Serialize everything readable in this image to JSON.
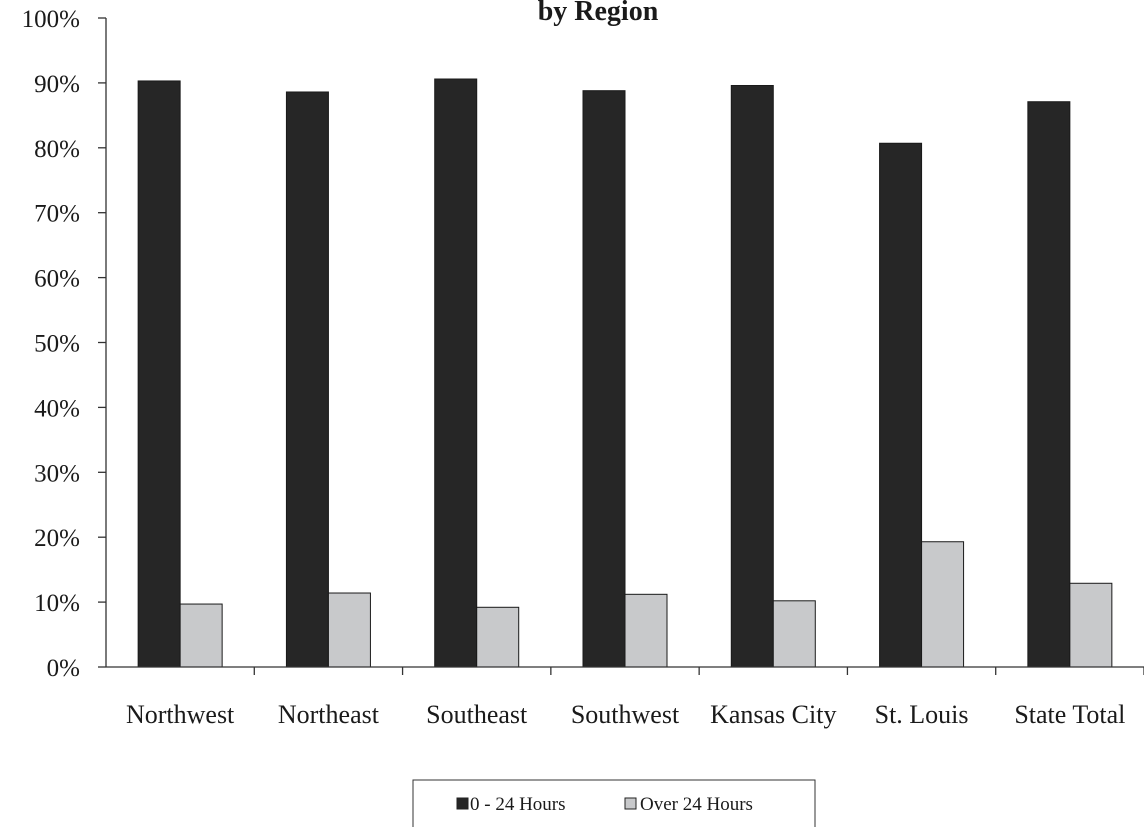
{
  "chart_data": {
    "type": "bar",
    "title": "by Region",
    "categories": [
      "Northwest",
      "Northeast",
      "Southeast",
      "Southwest",
      "Kansas City",
      "St. Louis",
      "State Total"
    ],
    "series": [
      {
        "name": "0 - 24 Hours",
        "values": [
          90.3,
          88.6,
          90.6,
          88.8,
          89.6,
          80.7,
          87.1
        ],
        "color": "#262626"
      },
      {
        "name": "Over 24 Hours",
        "values": [
          9.7,
          11.4,
          9.2,
          11.2,
          10.2,
          19.3,
          12.9
        ],
        "color": "#c8c9cb"
      }
    ],
    "ylim": [
      0,
      100
    ],
    "yticks": [
      "0%",
      "10%",
      "20%",
      "30%",
      "40%",
      "50%",
      "60%",
      "70%",
      "80%",
      "90%",
      "100%"
    ],
    "xlabel": "",
    "ylabel": "",
    "grid": false,
    "legend_position": "bottom"
  }
}
